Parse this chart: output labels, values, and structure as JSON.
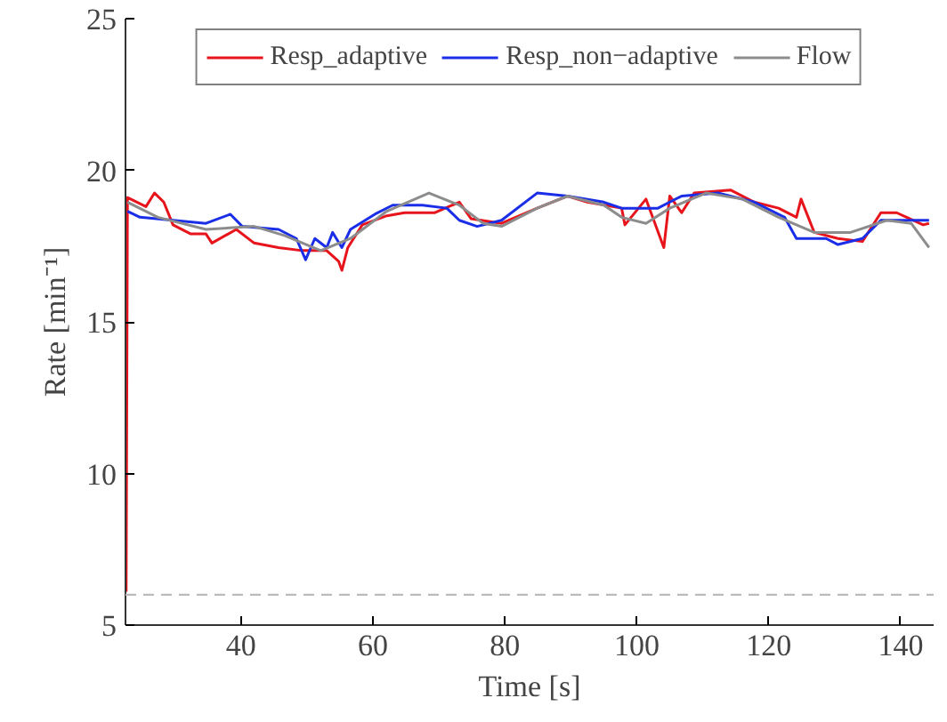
{
  "chart_data": {
    "type": "line",
    "xlabel": "Time [s]",
    "ylabel": "Rate [min⁻¹]",
    "xlim": [
      22.5,
      145
    ],
    "ylim": [
      5,
      25
    ],
    "xticks": [
      40,
      60,
      80,
      100,
      120,
      140
    ],
    "yticks": [
      5,
      10,
      15,
      20,
      25
    ],
    "grid": false,
    "legend": "top",
    "marker": "none",
    "line_style": "solid",
    "ref_lines": [
      {
        "axis": "y",
        "value": 6,
        "label": null,
        "color": "#bbbbbb",
        "line_style": "dashed"
      }
    ],
    "series": [
      {
        "name": "Resp_adaptive",
        "color": "#e8141c",
        "x": [
          22.6,
          22.8,
          25.6,
          26.9,
          28.3,
          29.7,
          32.4,
          34.7,
          35.6,
          39.3,
          42,
          45.7,
          49.3,
          53,
          54.8,
          55.3,
          56.2,
          58.4,
          62.1,
          64.8,
          69.4,
          73.1,
          74.9,
          79.5,
          84.9,
          89.5,
          92.5,
          97.7,
          98.2,
          101.4,
          104.1,
          105,
          106.8,
          108.7,
          114.2,
          117.8,
          121.5,
          124.2,
          124.9,
          126.9,
          130.5,
          134.2,
          137,
          139.4,
          143.4,
          144.3
        ],
        "values": [
          6.1,
          19.1,
          18.8,
          19.25,
          18.95,
          18.2,
          17.9,
          17.9,
          17.6,
          18.05,
          17.6,
          17.45,
          17.35,
          17.35,
          17.0,
          16.7,
          17.45,
          18.2,
          18.5,
          18.6,
          18.6,
          18.95,
          18.4,
          18.25,
          18.75,
          19.15,
          18.95,
          18.75,
          18.2,
          19.05,
          17.45,
          19.15,
          18.6,
          19.25,
          19.35,
          18.95,
          18.75,
          18.45,
          19.05,
          17.95,
          17.75,
          17.65,
          18.6,
          18.6,
          18.2,
          18.25
        ]
      },
      {
        "name": "Resp_non−adaptive",
        "color": "#1a2ee8",
        "x": [
          22.8,
          24.7,
          29.7,
          34.7,
          38.4,
          40.2,
          45.7,
          48.4,
          49.8,
          51.2,
          53,
          53.9,
          55.3,
          56.6,
          60.3,
          63,
          67.5,
          71.2,
          73.1,
          75.8,
          79.5,
          84.9,
          89.5,
          95,
          97.7,
          103.2,
          106.8,
          112.3,
          117.8,
          122.4,
          124.2,
          128.7,
          130.5,
          134.2,
          137,
          143.4,
          144.3
        ],
        "values": [
          18.65,
          18.45,
          18.35,
          18.25,
          18.55,
          18.15,
          18.05,
          17.75,
          17.05,
          17.75,
          17.45,
          17.95,
          17.45,
          18.05,
          18.55,
          18.85,
          18.85,
          18.75,
          18.35,
          18.15,
          18.35,
          19.25,
          19.15,
          18.95,
          18.75,
          18.75,
          19.15,
          19.25,
          18.95,
          18.45,
          17.75,
          17.75,
          17.55,
          17.75,
          18.35,
          18.35,
          18.35
        ]
      },
      {
        "name": "Flow",
        "color": "#8c8c8c",
        "x": [
          22.8,
          27.4,
          34.7,
          42,
          46.6,
          52.1,
          56.6,
          62.1,
          68.5,
          73.1,
          76.7,
          79.5,
          84.9,
          89.5,
          95,
          97.7,
          101.4,
          105,
          110.5,
          116,
          121.5,
          126.9,
          132.4,
          137.9,
          141.6,
          144.3
        ],
        "values": [
          18.95,
          18.45,
          18.05,
          18.15,
          17.85,
          17.35,
          17.75,
          18.65,
          19.25,
          18.85,
          18.25,
          18.15,
          18.75,
          19.15,
          18.85,
          18.45,
          18.25,
          18.75,
          19.25,
          19.05,
          18.45,
          17.95,
          17.95,
          18.35,
          18.25,
          17.45
        ]
      }
    ]
  }
}
